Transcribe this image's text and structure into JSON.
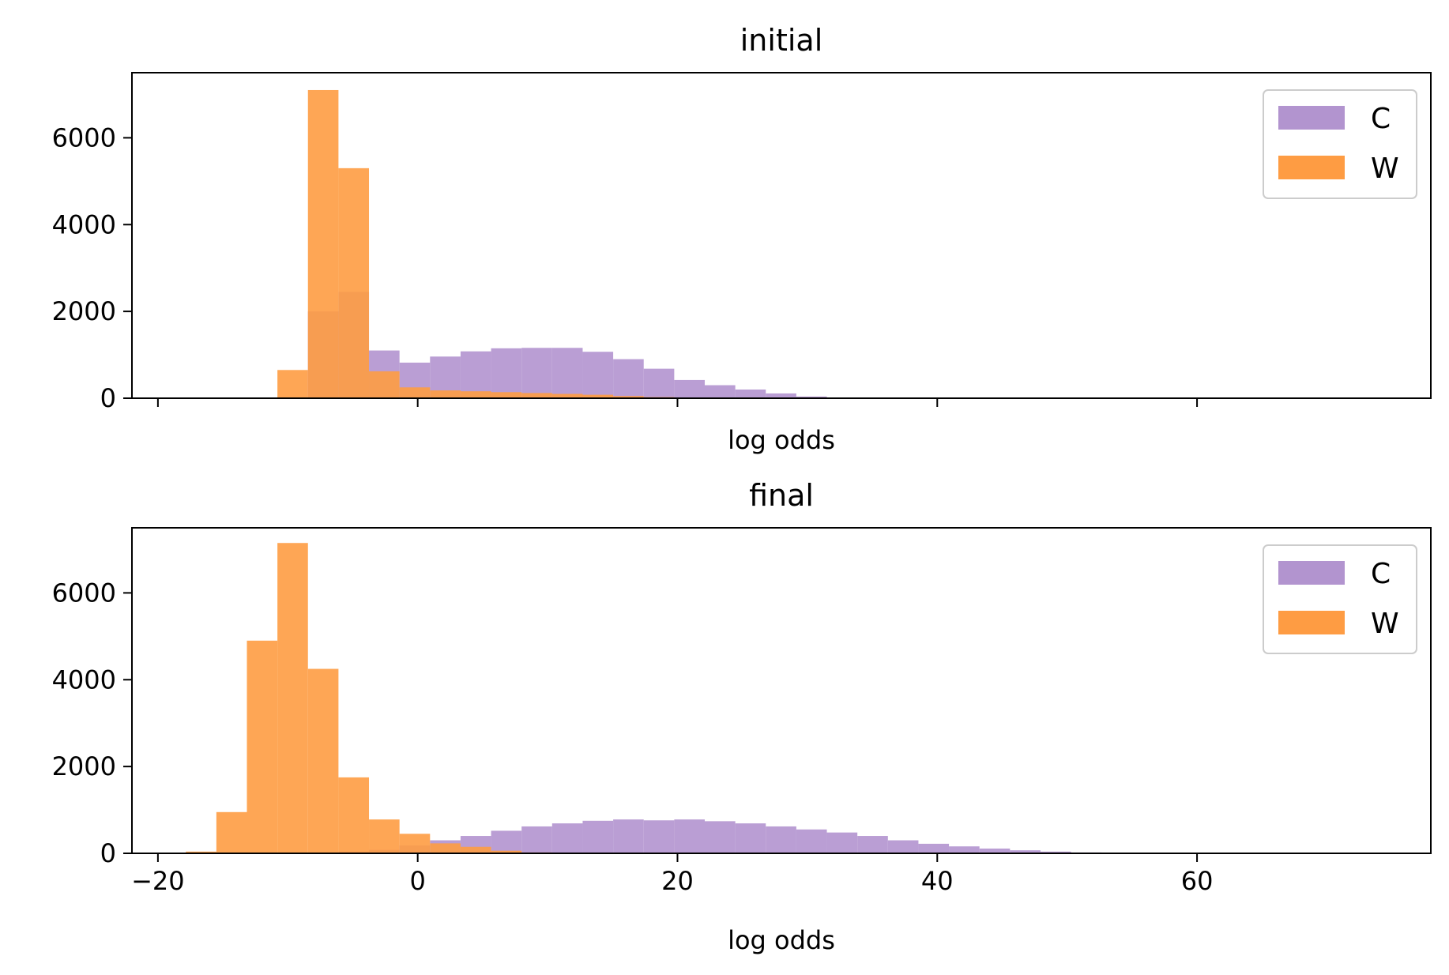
{
  "chart_data": [
    {
      "type": "bar",
      "title": "initial",
      "xlabel": "log odds",
      "ylabel": "",
      "xlim": [
        -22,
        78
      ],
      "ylim": [
        0,
        7500
      ],
      "xticks": [
        -20,
        0,
        20,
        40,
        60
      ],
      "xtick_labels_visible": false,
      "yticks": [
        0,
        2000,
        4000,
        6000
      ],
      "ytick_labels": [
        "0",
        "2000",
        "4000",
        "6000"
      ],
      "legend_position": "top-right",
      "series": [
        {
          "name": "C",
          "color": "#b294cf",
          "bins": [
            {
              "x0": -10.8,
              "x1": -8.45,
              "value": 0
            },
            {
              "x0": -8.45,
              "x1": -6.1,
              "value": 2000
            },
            {
              "x0": -6.1,
              "x1": -3.75,
              "value": 2450
            },
            {
              "x0": -3.75,
              "x1": -1.4,
              "value": 1100
            },
            {
              "x0": -1.4,
              "x1": 0.95,
              "value": 820
            },
            {
              "x0": 0.95,
              "x1": 3.3,
              "value": 960
            },
            {
              "x0": 3.3,
              "x1": 5.65,
              "value": 1080
            },
            {
              "x0": 5.65,
              "x1": 8.0,
              "value": 1150
            },
            {
              "x0": 8.0,
              "x1": 10.35,
              "value": 1160
            },
            {
              "x0": 10.35,
              "x1": 12.7,
              "value": 1160
            },
            {
              "x0": 12.7,
              "x1": 15.05,
              "value": 1070
            },
            {
              "x0": 15.05,
              "x1": 17.4,
              "value": 900
            },
            {
              "x0": 17.4,
              "x1": 19.75,
              "value": 680
            },
            {
              "x0": 19.75,
              "x1": 22.1,
              "value": 420
            },
            {
              "x0": 22.1,
              "x1": 24.45,
              "value": 300
            },
            {
              "x0": 24.45,
              "x1": 26.8,
              "value": 200
            },
            {
              "x0": 26.8,
              "x1": 29.15,
              "value": 110
            },
            {
              "x0": 29.15,
              "x1": 31.5,
              "value": 40
            }
          ]
        },
        {
          "name": "W",
          "color": "#fe9c43",
          "bins": [
            {
              "x0": -10.8,
              "x1": -8.45,
              "value": 650
            },
            {
              "x0": -8.45,
              "x1": -6.1,
              "value": 7100
            },
            {
              "x0": -6.1,
              "x1": -3.75,
              "value": 5300
            },
            {
              "x0": -3.75,
              "x1": -1.4,
              "value": 620
            },
            {
              "x0": -1.4,
              "x1": 0.95,
              "value": 250
            },
            {
              "x0": 0.95,
              "x1": 3.3,
              "value": 180
            },
            {
              "x0": 3.3,
              "x1": 5.65,
              "value": 160
            },
            {
              "x0": 5.65,
              "x1": 8.0,
              "value": 140
            },
            {
              "x0": 8.0,
              "x1": 10.35,
              "value": 120
            },
            {
              "x0": 10.35,
              "x1": 12.7,
              "value": 100
            },
            {
              "x0": 12.7,
              "x1": 15.05,
              "value": 80
            },
            {
              "x0": 15.05,
              "x1": 17.4,
              "value": 50
            },
            {
              "x0": 17.4,
              "x1": 19.75,
              "value": 25
            }
          ]
        }
      ]
    },
    {
      "type": "bar",
      "title": "final",
      "xlabel": "log odds",
      "ylabel": "",
      "xlim": [
        -22,
        78
      ],
      "ylim": [
        0,
        7500
      ],
      "xticks": [
        -20,
        0,
        20,
        40,
        60
      ],
      "xtick_labels": [
        "−20",
        "0",
        "20",
        "40",
        "60"
      ],
      "xtick_labels_visible": true,
      "yticks": [
        0,
        2000,
        4000,
        6000
      ],
      "ytick_labels": [
        "0",
        "2000",
        "4000",
        "6000"
      ],
      "legend_position": "top-right",
      "series": [
        {
          "name": "C",
          "color": "#b294cf",
          "bins": [
            {
              "x0": -6.1,
              "x1": -3.75,
              "value": 40
            },
            {
              "x0": -3.75,
              "x1": -1.4,
              "value": 80
            },
            {
              "x0": -1.4,
              "x1": 0.95,
              "value": 180
            },
            {
              "x0": 0.95,
              "x1": 3.3,
              "value": 300
            },
            {
              "x0": 3.3,
              "x1": 5.65,
              "value": 400
            },
            {
              "x0": 5.65,
              "x1": 8.0,
              "value": 520
            },
            {
              "x0": 8.0,
              "x1": 10.35,
              "value": 620
            },
            {
              "x0": 10.35,
              "x1": 12.7,
              "value": 690
            },
            {
              "x0": 12.7,
              "x1": 15.05,
              "value": 750
            },
            {
              "x0": 15.05,
              "x1": 17.4,
              "value": 780
            },
            {
              "x0": 17.4,
              "x1": 19.75,
              "value": 760
            },
            {
              "x0": 19.75,
              "x1": 22.1,
              "value": 780
            },
            {
              "x0": 22.1,
              "x1": 24.45,
              "value": 740
            },
            {
              "x0": 24.45,
              "x1": 26.8,
              "value": 690
            },
            {
              "x0": 26.8,
              "x1": 29.15,
              "value": 620
            },
            {
              "x0": 29.15,
              "x1": 31.5,
              "value": 550
            },
            {
              "x0": 31.5,
              "x1": 33.85,
              "value": 480
            },
            {
              "x0": 33.85,
              "x1": 36.2,
              "value": 400
            },
            {
              "x0": 36.2,
              "x1": 38.55,
              "value": 300
            },
            {
              "x0": 38.55,
              "x1": 40.9,
              "value": 220
            },
            {
              "x0": 40.9,
              "x1": 43.25,
              "value": 160
            },
            {
              "x0": 43.25,
              "x1": 45.6,
              "value": 110
            },
            {
              "x0": 45.6,
              "x1": 47.95,
              "value": 70
            },
            {
              "x0": 47.95,
              "x1": 50.3,
              "value": 40
            },
            {
              "x0": 50.3,
              "x1": 52.65,
              "value": 20
            }
          ]
        },
        {
          "name": "W",
          "color": "#fe9c43",
          "bins": [
            {
              "x0": -17.85,
              "x1": -15.5,
              "value": 40
            },
            {
              "x0": -15.5,
              "x1": -13.15,
              "value": 950
            },
            {
              "x0": -13.15,
              "x1": -10.8,
              "value": 4900
            },
            {
              "x0": -10.8,
              "x1": -8.45,
              "value": 7150
            },
            {
              "x0": -8.45,
              "x1": -6.1,
              "value": 4250
            },
            {
              "x0": -6.1,
              "x1": -3.75,
              "value": 1750
            },
            {
              "x0": -3.75,
              "x1": -1.4,
              "value": 780
            },
            {
              "x0": -1.4,
              "x1": 0.95,
              "value": 450
            },
            {
              "x0": 0.95,
              "x1": 3.3,
              "value": 230
            },
            {
              "x0": 3.3,
              "x1": 5.65,
              "value": 150
            },
            {
              "x0": 5.65,
              "x1": 8.0,
              "value": 60
            },
            {
              "x0": 8.0,
              "x1": 10.35,
              "value": 20
            }
          ]
        }
      ]
    }
  ]
}
